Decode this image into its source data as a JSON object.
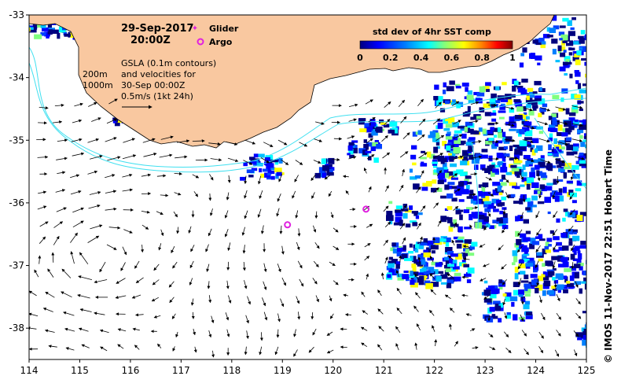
{
  "header": {
    "date": "29-Sep-2017",
    "time": "20:00Z"
  },
  "legend": {
    "glider": "Glider",
    "argo": "Argo",
    "glider_color": "#e020e0",
    "argo_color": "#e020e0"
  },
  "info": {
    "line1": "GSLA (0.1m contours)",
    "line2": "and velocities for",
    "line3": "30-Sep 00:00Z",
    "line4": "0.5m/s (1kt 24h)"
  },
  "isobaths": {
    "label_200": "200m",
    "label_1000": "1000m",
    "color": "#40e0f0"
  },
  "colorbar": {
    "title": "std dev of 4hr SST comp",
    "ticks": [
      "0",
      "0.2",
      "0.4",
      "0.6",
      "0.8",
      "1"
    ],
    "colors": [
      "#00007f",
      "#0000ff",
      "#007fff",
      "#00ffff",
      "#7fff7f",
      "#ffff00",
      "#ff7f00",
      "#ff0000",
      "#7f0000"
    ]
  },
  "axes": {
    "x_ticks": [
      "114",
      "115",
      "116",
      "117",
      "118",
      "119",
      "120",
      "121",
      "122",
      "123",
      "124",
      "125"
    ],
    "y_ticks": [
      "-33",
      "-34",
      "-35",
      "-36",
      "-37",
      "-38"
    ],
    "xlim": [
      114,
      125
    ],
    "ylim": [
      -38.5,
      -33
    ]
  },
  "land_color": "#f9c8a0",
  "argo_floats": [
    {
      "lon": 119.1,
      "lat": -36.35
    },
    {
      "lon": 120.65,
      "lat": -36.1
    }
  ],
  "credit": "© IMOS 11-Nov-2017 22:51 Hobart Time"
}
